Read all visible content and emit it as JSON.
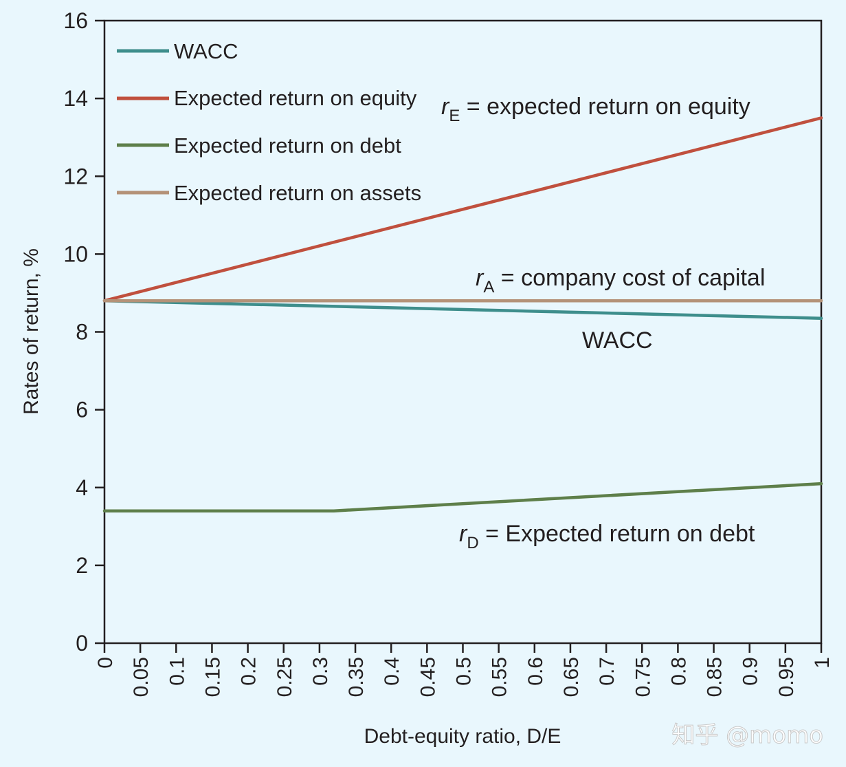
{
  "chart_data": {
    "type": "line",
    "xlabel": "Debt-equity ratio, D/E",
    "ylabel": "Rates of return, %",
    "xlim": [
      0,
      1
    ],
    "ylim": [
      0,
      16
    ],
    "x_ticks": [
      0,
      0.05,
      0.1,
      0.15,
      0.2,
      0.25,
      0.3,
      0.35,
      0.4,
      0.45,
      0.5,
      0.55,
      0.6,
      0.65,
      0.7,
      0.75,
      0.8,
      0.85,
      0.9,
      0.95,
      1
    ],
    "x_tick_labels": [
      "0",
      "0.05",
      "0.1",
      "0.15",
      "0.2",
      "0.25",
      "0.3",
      "0.35",
      "0.4",
      "0.45",
      "0.5",
      "0.55",
      "0.6",
      "0.65",
      "0.7",
      "0.75",
      "0.8",
      "0.85",
      "0.9",
      "0.95",
      "1"
    ],
    "y_ticks": [
      0,
      2,
      4,
      6,
      8,
      10,
      12,
      14,
      16
    ],
    "y_tick_labels": [
      "0",
      "2",
      "4",
      "6",
      "8",
      "10",
      "12",
      "14",
      "16"
    ],
    "series": [
      {
        "name": "WACC",
        "color": "#3e8e8c",
        "x": [
          0,
          1
        ],
        "y": [
          8.8,
          8.35
        ]
      },
      {
        "name": "Expected return on equity",
        "color": "#c0503e",
        "x": [
          0,
          1
        ],
        "y": [
          8.8,
          13.5
        ]
      },
      {
        "name": "Expected return on debt",
        "color": "#5e7f4a",
        "x": [
          0,
          0.32,
          1
        ],
        "y": [
          3.4,
          3.4,
          4.1
        ]
      },
      {
        "name": "Expected return on assets",
        "color": "#b49278",
        "x": [
          0,
          1
        ],
        "y": [
          8.8,
          8.8
        ]
      }
    ],
    "annotations": {
      "equity": {
        "sym": "r",
        "sub": "E",
        "text": " = expected return on equity"
      },
      "assets": {
        "sym": "r",
        "sub": "A",
        "text": " = company cost of capital"
      },
      "wacc": {
        "text": "WACC"
      },
      "debt": {
        "sym": "r",
        "sub": "D",
        "text": " = Expected return on debt"
      }
    },
    "legend_position": "top-left"
  },
  "watermark": "知乎 @momo"
}
